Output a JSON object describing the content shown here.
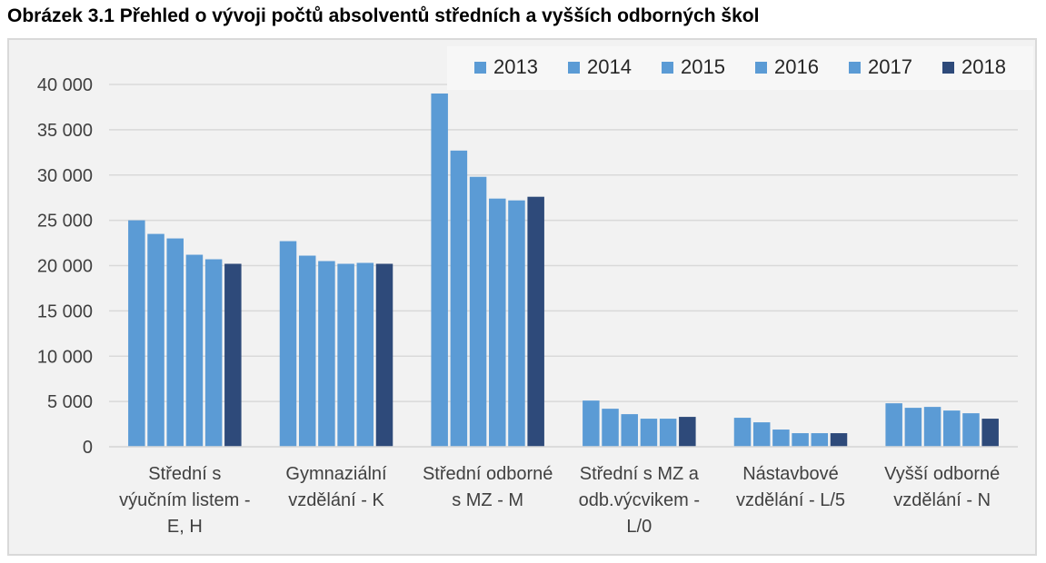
{
  "figure": {
    "title": "Obrázek 3.1 Přehled o vývoji počtů absolventů středních a vyšších odborných škol"
  },
  "chart_data": {
    "type": "bar",
    "categories": [
      [
        "Střední s",
        "výučním listem -",
        "E, H"
      ],
      [
        "Gymnaziální",
        "vzdělání - K"
      ],
      [
        "Střední odborné",
        "s MZ - M"
      ],
      [
        "Střední s MZ a",
        "odb.výcvikem -",
        "L/0"
      ],
      [
        "Nástavbové",
        "vzdělání - L/5"
      ],
      [
        "Vyšší odborné",
        "vzdělání - N"
      ]
    ],
    "series": [
      {
        "name": "2013",
        "color": "#5b9bd5",
        "values": [
          25000,
          22700,
          39000,
          5100,
          3200,
          4800
        ]
      },
      {
        "name": "2014",
        "color": "#5b9bd5",
        "values": [
          23500,
          21100,
          32700,
          4200,
          2700,
          4300
        ]
      },
      {
        "name": "2015",
        "color": "#5b9bd5",
        "values": [
          23000,
          20500,
          29800,
          3600,
          1900,
          4400
        ]
      },
      {
        "name": "2016",
        "color": "#5b9bd5",
        "values": [
          21200,
          20200,
          27400,
          3100,
          1500,
          4000
        ]
      },
      {
        "name": "2017",
        "color": "#5b9bd5",
        "values": [
          20700,
          20300,
          27200,
          3100,
          1500,
          3700
        ]
      },
      {
        "name": "2018",
        "color": "#2e4a7a",
        "values": [
          20200,
          20200,
          27600,
          3300,
          1500,
          3100
        ]
      }
    ],
    "ylim": [
      0,
      40000
    ],
    "yticks": [
      0,
      5000,
      10000,
      15000,
      20000,
      25000,
      30000,
      35000,
      40000
    ],
    "ytick_labels": [
      "0",
      "5 000",
      "10 000",
      "15 000",
      "20 000",
      "25 000",
      "30 000",
      "35 000",
      "40 000"
    ],
    "grid": true,
    "legend_position": "top-right"
  }
}
